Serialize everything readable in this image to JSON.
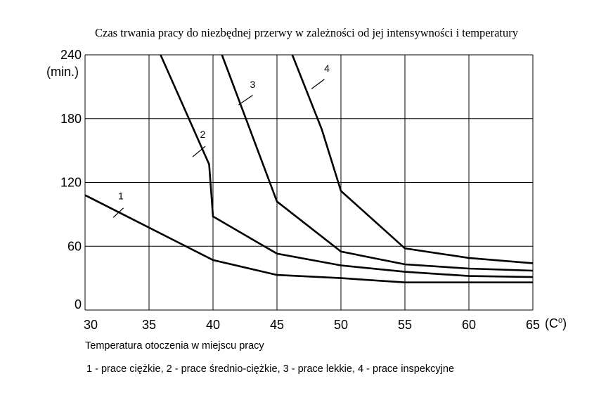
{
  "chart_data": {
    "type": "line",
    "title": "Czas trwania pracy do niezbędnej przerwy w zależności od jej intensywności i temperatury",
    "xlabel": "Temperatura otoczenia w miejscu pracy",
    "x_unit_prefix": "(C",
    "x_unit_sup": "o",
    "x_unit_suffix": ")",
    "y_unit": "(min.)",
    "xlim": [
      30,
      65
    ],
    "ylim": [
      0,
      240
    ],
    "x_ticks": [
      "30",
      "35",
      "40",
      "45",
      "50",
      "55",
      "60",
      "65"
    ],
    "y_ticks": [
      "0",
      "60",
      "120",
      "180",
      "240"
    ],
    "grid": true,
    "legend_text": "1 - prace ciężkie, 2 - prace średnio-ciężkie, 3 - prace lekkie, 4 - prace inspekcyjne",
    "series": [
      {
        "name": "1",
        "points": [
          [
            30,
            108
          ],
          [
            40,
            47
          ],
          [
            45,
            33
          ],
          [
            50,
            30
          ],
          [
            55,
            26
          ],
          [
            60,
            26
          ],
          [
            65,
            26
          ]
        ],
        "label_at": [
          32.8,
          104
        ],
        "leader": [
          [
            33.0,
            96
          ],
          [
            32.2,
            87
          ]
        ]
      },
      {
        "name": "2",
        "points": [
          [
            35.9,
            240
          ],
          [
            39.7,
            137
          ],
          [
            40,
            88
          ],
          [
            45,
            53
          ],
          [
            50,
            42
          ],
          [
            55,
            36
          ],
          [
            60,
            32
          ],
          [
            65,
            31
          ]
        ],
        "label_at": [
          39.2,
          162
        ],
        "leader": [
          [
            39.4,
            154
          ],
          [
            38.4,
            144
          ]
        ]
      },
      {
        "name": "3",
        "points": [
          [
            40.7,
            240
          ],
          [
            45,
            102
          ],
          [
            50,
            55
          ],
          [
            55,
            43
          ],
          [
            60,
            39
          ],
          [
            65,
            37
          ]
        ],
        "label_at": [
          43.1,
          209
        ],
        "leader": [
          [
            43.1,
            202
          ],
          [
            42.0,
            193
          ]
        ]
      },
      {
        "name": "4",
        "points": [
          [
            46.2,
            240
          ],
          [
            48.5,
            170
          ],
          [
            50,
            112
          ],
          [
            55,
            58
          ],
          [
            60,
            49
          ],
          [
            65,
            44
          ]
        ],
        "label_at": [
          48.9,
          224
        ],
        "leader": [
          [
            48.7,
            217
          ],
          [
            47.7,
            208
          ]
        ]
      }
    ]
  }
}
